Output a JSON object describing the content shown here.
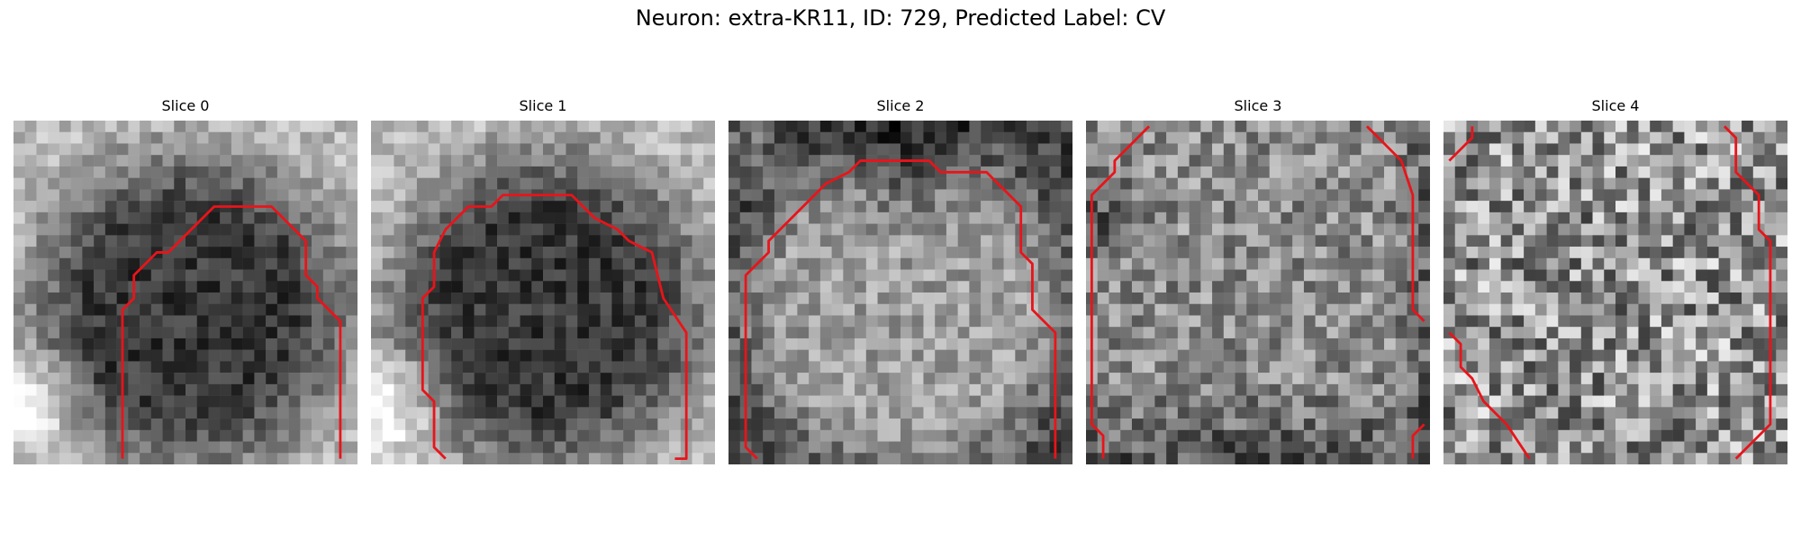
{
  "figure": {
    "title": "Neuron: extra-KR11, ID: 729, Predicted Label: CV"
  },
  "contour_color": "#e8141a",
  "panels": [
    {
      "label": "Slice 0",
      "pattern": "dark-nucleus"
    },
    {
      "label": "Slice 1",
      "pattern": "dark-nucleus"
    },
    {
      "label": "Slice 2",
      "pattern": "bright-nucleus"
    },
    {
      "label": "Slice 3",
      "pattern": "mixed-noise"
    },
    {
      "label": "Slice 4",
      "pattern": "bright-noise"
    }
  ]
}
